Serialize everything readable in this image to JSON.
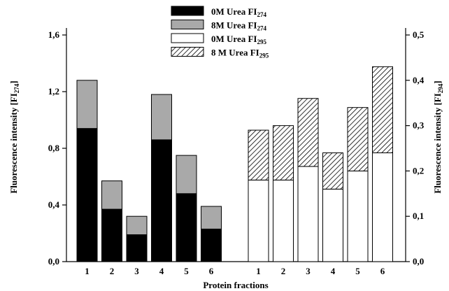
{
  "chart_data": {
    "type": "bar",
    "stacked": true,
    "xlabel": "Protein fractions",
    "left_axis": {
      "label_main": "Fluorescence intensity [FI",
      "label_sub": "274",
      "label_end": "]",
      "ylim": [
        0,
        1.6
      ],
      "ticks": [
        "0,0",
        "0,4",
        "0,8",
        "1,2",
        "1,6"
      ]
    },
    "right_axis": {
      "label_main": "Fluorescence intensity [FI",
      "label_sub": "294",
      "label_end": "]",
      "ylim": [
        0,
        0.5
      ],
      "ticks": [
        "0,0",
        "0,1",
        "0,2",
        "0,3",
        "0,4",
        "0,5"
      ]
    },
    "legend": [
      {
        "text": "0M Urea FI",
        "sub": "274",
        "style": "solid-black"
      },
      {
        "text": "8M Urea FI",
        "sub": "274",
        "style": "solid-gray"
      },
      {
        "text": "0M Urea FI",
        "sub": "295",
        "style": "white"
      },
      {
        "text": "8 M Urea FI",
        "sub": "295",
        "style": "hatched"
      }
    ],
    "groups": [
      {
        "axis": "left",
        "categories": [
          "1",
          "2",
          "3",
          "4",
          "5",
          "6"
        ],
        "series": [
          {
            "name": "0M Urea FI274",
            "values": [
              0.94,
              0.37,
              0.19,
              0.86,
              0.48,
              0.23
            ]
          },
          {
            "name": "8M Urea FI274",
            "values": [
              0.34,
              0.2,
              0.13,
              0.32,
              0.27,
              0.16
            ]
          }
        ]
      },
      {
        "axis": "right",
        "categories": [
          "1",
          "2",
          "3",
          "4",
          "5",
          "6"
        ],
        "series": [
          {
            "name": "0M Urea FI295",
            "values": [
              0.18,
              0.18,
              0.21,
              0.16,
              0.2,
              0.24
            ]
          },
          {
            "name": "8 M Urea FI295",
            "values": [
              0.11,
              0.12,
              0.15,
              0.08,
              0.14,
              0.19
            ]
          }
        ]
      }
    ],
    "colors": {
      "solid_black": "#000000",
      "solid_gray": "#a9a9a9",
      "white": "#ffffff",
      "hatch": "#000000"
    },
    "grid": false
  }
}
